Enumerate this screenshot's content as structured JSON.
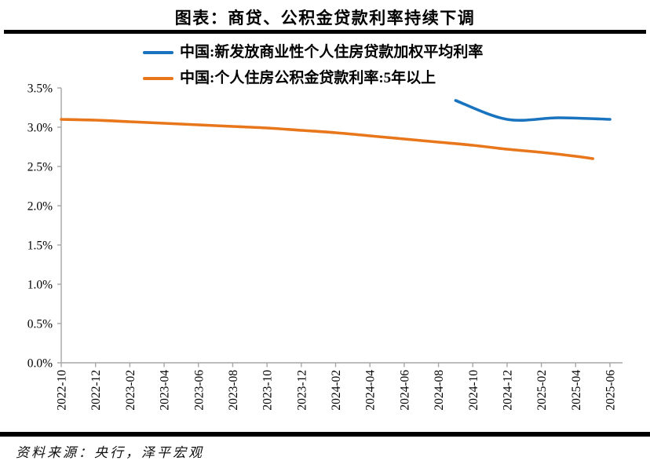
{
  "title": "图表：商贷、公积金贷款利率持续下调",
  "source": "资料来源：央行，泽平宏观",
  "colors": {
    "series_commercial": "#1973BE",
    "series_provident": "#E8761B",
    "axis": "#A6A6A6",
    "rule": "#000000",
    "text": "#000000"
  },
  "legend": [
    {
      "label": "中国:新发放商业性个人住房贷款加权平均利率",
      "color": "#1973BE"
    },
    {
      "label": "中国:个人住房公积金贷款利率:5年以上",
      "color": "#E8761B"
    }
  ],
  "chart_data": {
    "type": "line",
    "title": "图表：商贷、公积金贷款利率持续下调",
    "xlabel": "",
    "ylabel": "",
    "ylim": [
      0,
      3.5
    ],
    "y_tick_step": 0.5,
    "grid": false,
    "legend_position": "top",
    "x_ticks": [
      "2022-10",
      "2022-12",
      "2023-02",
      "2023-04",
      "2023-06",
      "2023-08",
      "2023-10",
      "2023-12",
      "2024-02",
      "2024-04",
      "2024-06",
      "2024-08",
      "2024-10",
      "2024-12",
      "2025-02",
      "2025-04",
      "2025-06"
    ],
    "y_ticks": [
      "0.0%",
      "0.5%",
      "1.0%",
      "1.5%",
      "2.0%",
      "2.5%",
      "3.0%",
      "3.5%"
    ],
    "x_range": [
      "2022-10",
      "2025-06"
    ],
    "series": [
      {
        "name": "中国:新发放商业性个人住房贷款加权平均利率",
        "color": "#1973BE",
        "points": [
          [
            "2024-09",
            3.34
          ],
          [
            "2024-12",
            3.1
          ],
          [
            "2025-03",
            3.12
          ],
          [
            "2025-06",
            3.1
          ]
        ]
      },
      {
        "name": "中国:个人住房公积金贷款利率:5年以上",
        "color": "#E8761B",
        "points": [
          [
            "2022-10",
            3.1
          ],
          [
            "2022-12",
            3.09
          ],
          [
            "2023-02",
            3.07
          ],
          [
            "2023-04",
            3.05
          ],
          [
            "2023-06",
            3.03
          ],
          [
            "2023-08",
            3.01
          ],
          [
            "2023-10",
            2.99
          ],
          [
            "2023-12",
            2.96
          ],
          [
            "2024-02",
            2.93
          ],
          [
            "2024-04",
            2.89
          ],
          [
            "2024-06",
            2.85
          ],
          [
            "2024-08",
            2.81
          ],
          [
            "2024-10",
            2.77
          ],
          [
            "2024-12",
            2.72
          ],
          [
            "2025-02",
            2.68
          ],
          [
            "2025-04",
            2.63
          ],
          [
            "2025-05",
            2.6
          ]
        ]
      }
    ]
  }
}
